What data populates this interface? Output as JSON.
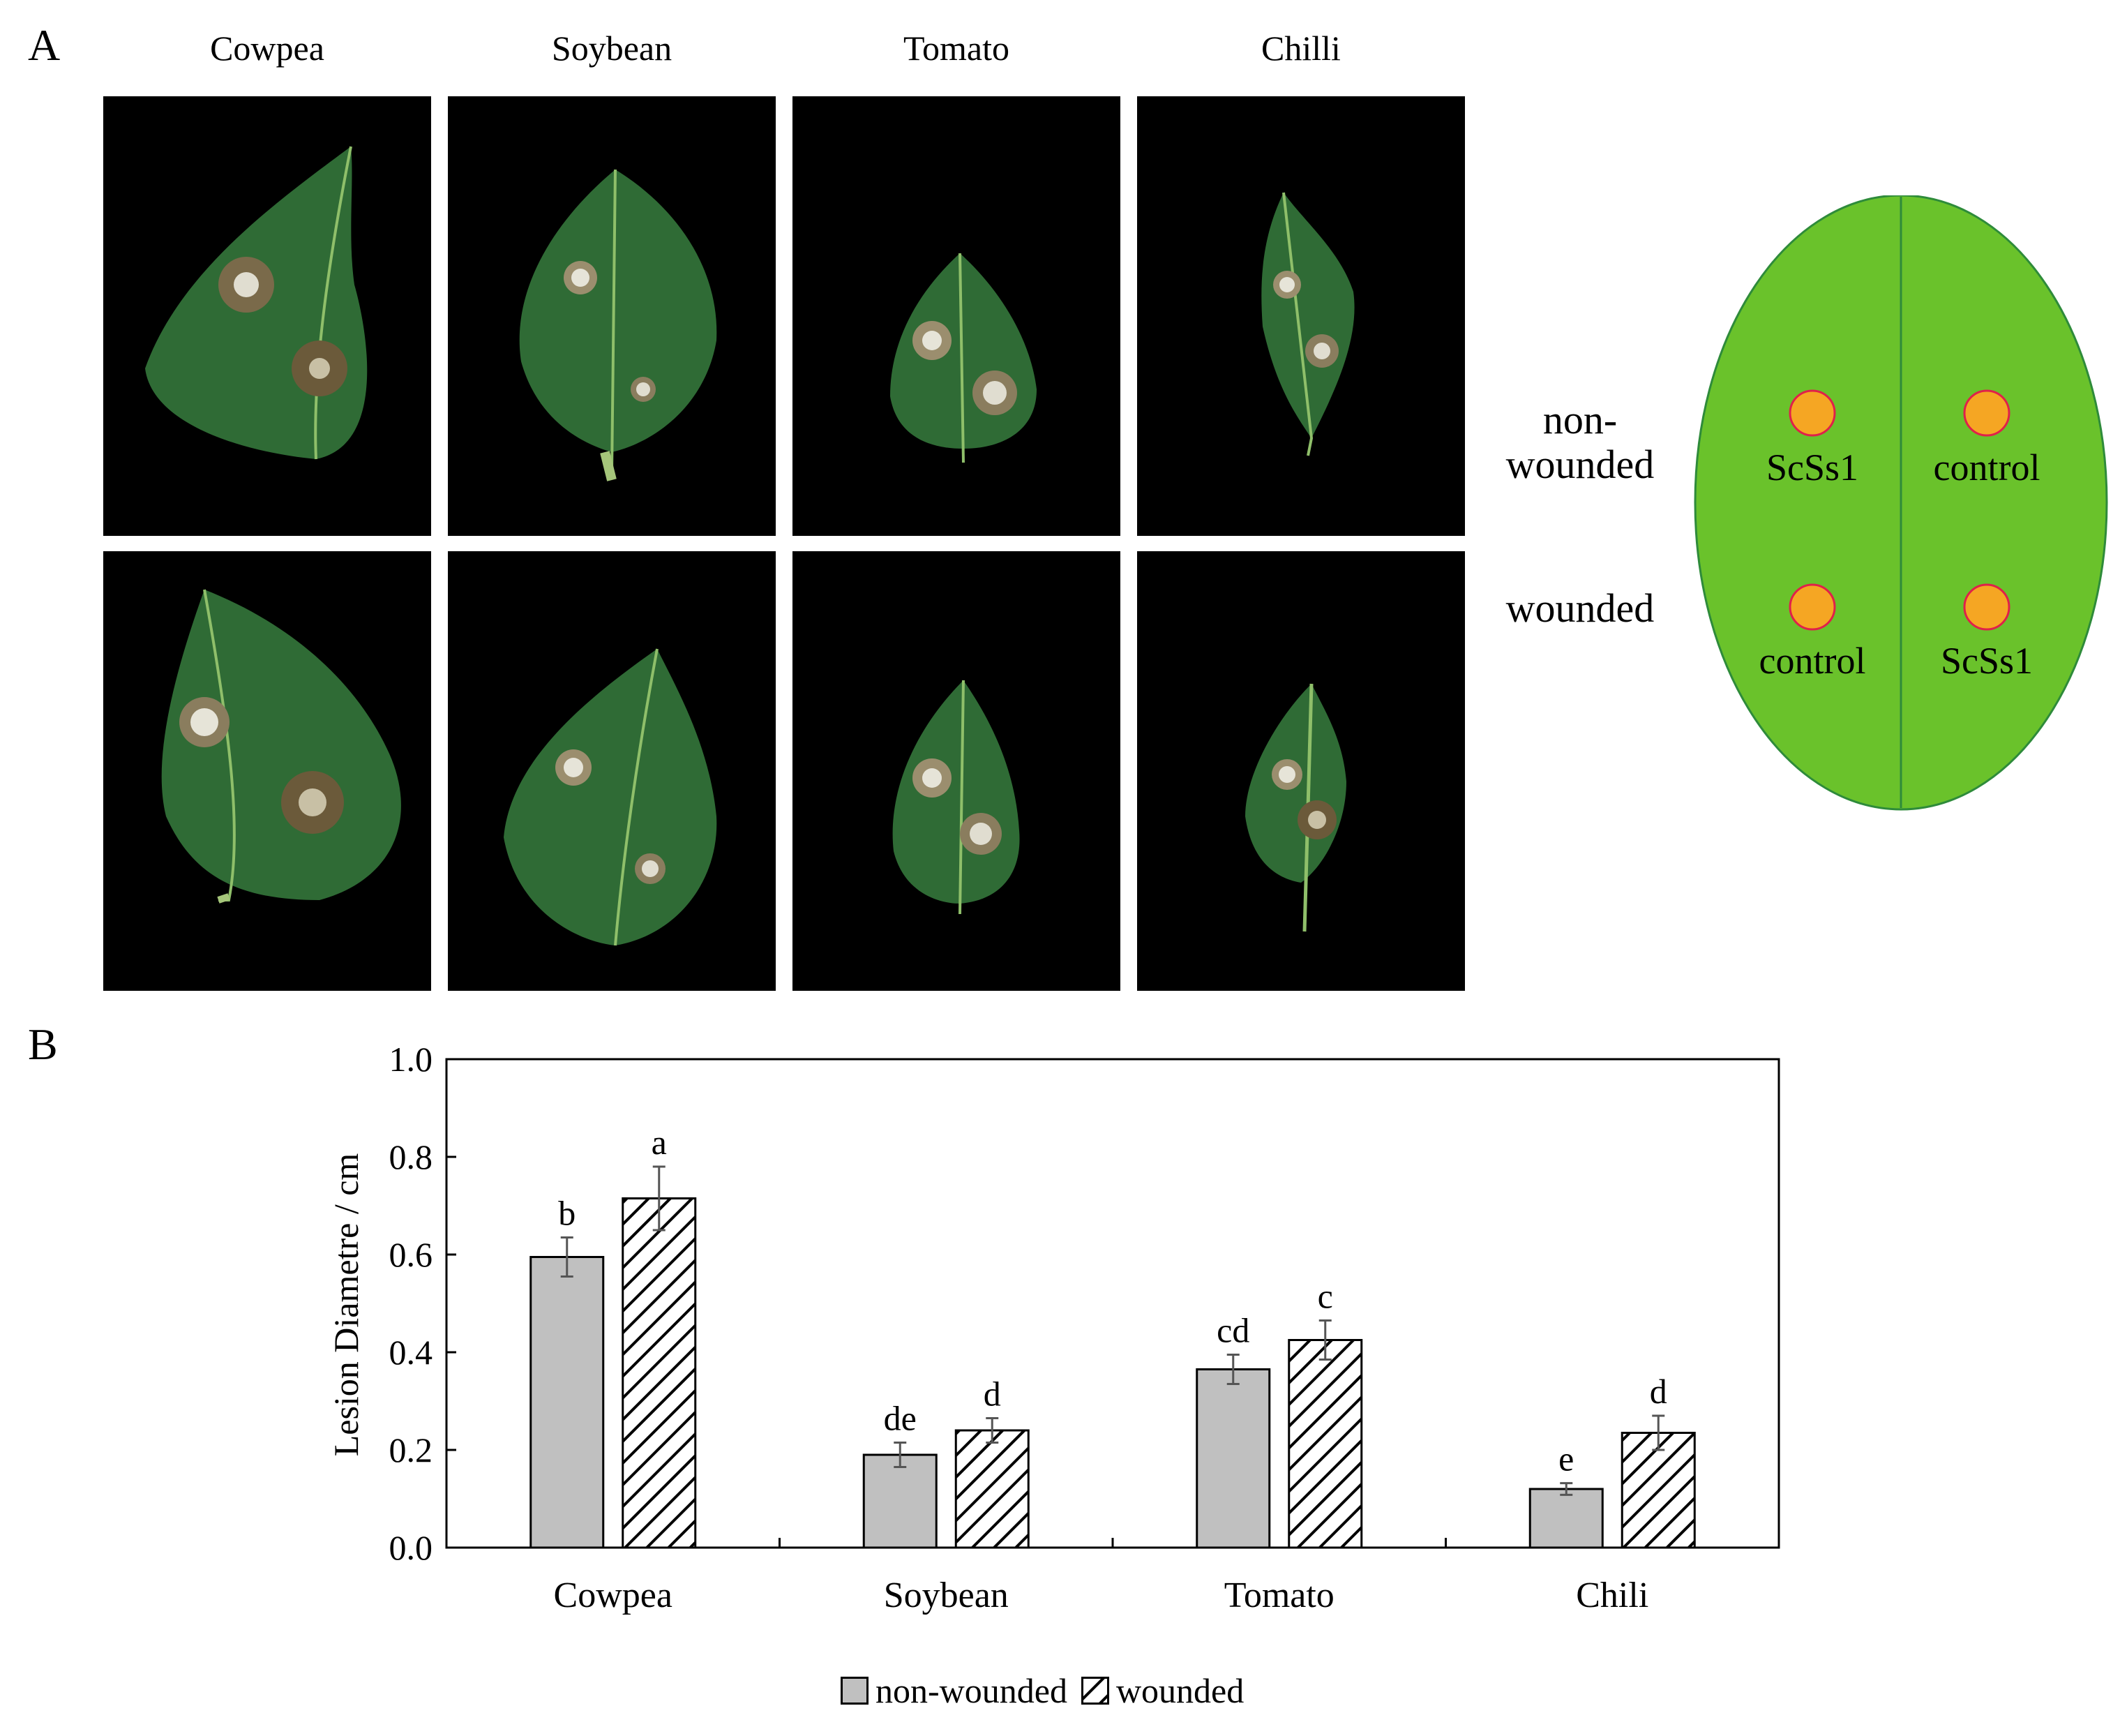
{
  "panel_a": {
    "label": "A",
    "columns": [
      "Cowpea",
      "Soybean",
      "Tomato",
      "Chilli"
    ],
    "row_labels": {
      "non_wounded": "non-\nwounded",
      "wounded": "wounded"
    },
    "schematic": {
      "top_left": "ScSs1",
      "top_right": "control",
      "bottom_left": "control",
      "bottom_right": "ScSs1"
    },
    "colors": {
      "leaf": "#2f6b35",
      "schematic_leaf": "#6ac22b",
      "schematic_spot": "#f5a623",
      "background": "#000000"
    }
  },
  "panel_b": {
    "label": "B"
  },
  "chart_data": {
    "type": "bar",
    "categories": [
      "Cowpea",
      "Soybean",
      "Tomato",
      "Chili"
    ],
    "series": [
      {
        "name": "non-wounded",
        "values": [
          0.595,
          0.19,
          0.365,
          0.12
        ],
        "errors": [
          0.04,
          0.025,
          0.03,
          0.012
        ],
        "letters": [
          "b",
          "de",
          "cd",
          "e"
        ],
        "fill": "#c0c0c0"
      },
      {
        "name": "wounded",
        "values": [
          0.715,
          0.24,
          0.425,
          0.235
        ],
        "errors": [
          0.065,
          0.025,
          0.04,
          0.035
        ],
        "letters": [
          "a",
          "d",
          "c",
          "d"
        ],
        "fill": "hatch"
      }
    ],
    "ylabel": "Lesion Diametre / cm",
    "xlabel": "",
    "ylim": [
      0,
      1.0
    ],
    "yticks": [
      "0.0",
      "0.2",
      "0.4",
      "0.6",
      "0.8",
      "1.0"
    ],
    "legend": "bottom-center",
    "grid": false
  }
}
